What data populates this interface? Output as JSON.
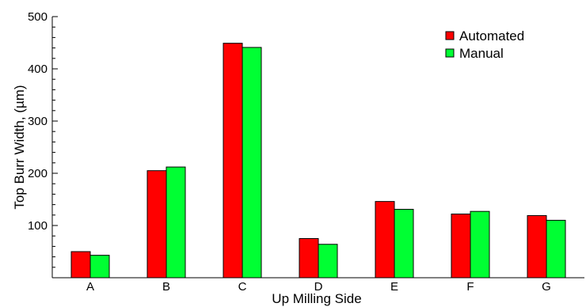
{
  "chart_data": {
    "type": "bar",
    "title": "",
    "xlabel": "Up Milling Side",
    "ylabel": "Top Burr Width, (µm)",
    "categories": [
      "A",
      "B",
      "C",
      "D",
      "E",
      "F",
      "G"
    ],
    "series": [
      {
        "name": "Automated",
        "color": "#ff0000",
        "values": [
          50,
          205,
          449,
          75,
          146,
          122,
          119
        ]
      },
      {
        "name": "Manual",
        "color": "#00ff33",
        "values": [
          43,
          212,
          441,
          64,
          131,
          127,
          110
        ]
      }
    ],
    "ylim": [
      0,
      500
    ],
    "yticks": [
      100,
      200,
      300,
      400,
      500
    ],
    "ytick_labels": [
      "100",
      "200",
      "300",
      "400",
      "500"
    ],
    "grid": false,
    "legend_position": "top-right"
  }
}
